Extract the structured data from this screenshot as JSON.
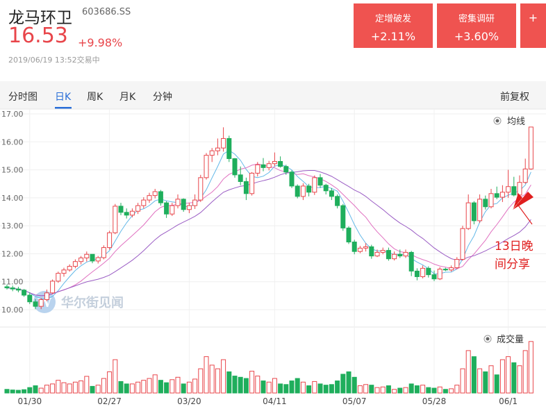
{
  "stock": {
    "name": "龙马环卫",
    "code": "603686.SS",
    "price": "16.53",
    "change": "+9.98%",
    "time": "2019/06/19 13:52交易中"
  },
  "tags": [
    {
      "label": "定增破发",
      "value": "+2.11%"
    },
    {
      "label": "密集调研",
      "value": "+3.60%"
    },
    {
      "label": "",
      "value": "+"
    }
  ],
  "tabs": [
    "分时图",
    "日K",
    "周K",
    "月K",
    "分钟"
  ],
  "active_tab": "日K",
  "adjust_label": "前复权",
  "colors": {
    "up": "#e8454a",
    "down": "#1fae5c",
    "accent": "#2a6ed8",
    "ma5": "#63b8e8",
    "ma10": "#e070c0",
    "ma20": "#9a5cc4"
  },
  "chart_data": {
    "type": "candlestick",
    "price_ticks": [
      "17.00",
      "16.00",
      "15.00",
      "14.00",
      "13.00",
      "12.00",
      "11.00",
      "10.00"
    ],
    "ylim": [
      9.6,
      17.1
    ],
    "date_ticks": [
      {
        "label": "01/30",
        "index": 4
      },
      {
        "label": "02/27",
        "index": 18
      },
      {
        "label": "03/20",
        "index": 32
      },
      {
        "label": "04/11",
        "index": 47
      },
      {
        "label": "05/07",
        "index": 61
      },
      {
        "label": "05/28",
        "index": 75
      },
      {
        "label": "06/1",
        "index": 88
      }
    ],
    "legend_price": "均线",
    "legend_volume": "成交量",
    "watermark": "华尔街见闻",
    "annotation": {
      "line1": "13日晚",
      "line2": "间分享"
    },
    "candles": [
      [
        10.82,
        10.9,
        10.72,
        10.78
      ],
      [
        10.78,
        10.86,
        10.66,
        10.74
      ],
      [
        10.74,
        10.82,
        10.62,
        10.7
      ],
      [
        10.7,
        10.74,
        10.46,
        10.52
      ],
      [
        10.52,
        10.62,
        10.2,
        10.28
      ],
      [
        10.28,
        10.38,
        10.02,
        10.12
      ],
      [
        10.12,
        10.42,
        10.02,
        10.36
      ],
      [
        10.36,
        10.72,
        10.3,
        10.6
      ],
      [
        10.6,
        11.08,
        10.56,
        11.02
      ],
      [
        11.02,
        11.36,
        10.96,
        11.3
      ],
      [
        11.3,
        11.5,
        11.18,
        11.42
      ],
      [
        11.42,
        11.62,
        11.36,
        11.55
      ],
      [
        11.55,
        11.8,
        11.48,
        11.72
      ],
      [
        11.72,
        11.92,
        11.62,
        11.85
      ],
      [
        11.85,
        12.08,
        11.72,
        11.98
      ],
      [
        11.98,
        11.98,
        11.66,
        11.74
      ],
      [
        11.74,
        11.92,
        11.65,
        11.86
      ],
      [
        11.86,
        12.3,
        11.8,
        12.22
      ],
      [
        12.22,
        12.82,
        12.15,
        12.75
      ],
      [
        12.75,
        13.78,
        12.7,
        13.7
      ],
      [
        13.7,
        13.82,
        13.38,
        13.48
      ],
      [
        13.48,
        13.62,
        13.26,
        13.38
      ],
      [
        13.38,
        13.62,
        13.3,
        13.52
      ],
      [
        13.52,
        13.82,
        13.42,
        13.72
      ],
      [
        13.72,
        14.02,
        13.62,
        13.92
      ],
      [
        13.92,
        14.18,
        13.82,
        14.08
      ],
      [
        14.08,
        14.32,
        13.98,
        14.22
      ],
      [
        14.22,
        14.28,
        13.72,
        13.82
      ],
      [
        13.82,
        13.88,
        13.28,
        13.42
      ],
      [
        13.42,
        13.82,
        13.35,
        13.72
      ],
      [
        13.72,
        14.12,
        13.62,
        13.95
      ],
      [
        13.95,
        13.98,
        13.5,
        13.58
      ],
      [
        13.58,
        13.82,
        13.45,
        13.72
      ],
      [
        13.72,
        14.12,
        13.6,
        13.92
      ],
      [
        13.92,
        14.82,
        13.85,
        14.72
      ],
      [
        14.72,
        15.6,
        14.65,
        15.52
      ],
      [
        15.52,
        15.78,
        15.28,
        15.68
      ],
      [
        15.68,
        16.12,
        15.52,
        15.78
      ],
      [
        15.78,
        16.52,
        15.65,
        16.12
      ],
      [
        16.12,
        16.22,
        15.28,
        15.4
      ],
      [
        15.4,
        15.42,
        14.72,
        14.82
      ],
      [
        14.82,
        15.12,
        14.45,
        14.58
      ],
      [
        14.58,
        14.72,
        13.92,
        14.15
      ],
      [
        14.15,
        14.92,
        14.08,
        14.88
      ],
      [
        14.88,
        15.28,
        14.76,
        15.18
      ],
      [
        15.18,
        15.42,
        14.95,
        15.08
      ],
      [
        15.08,
        15.32,
        14.98,
        15.22
      ],
      [
        15.22,
        15.62,
        15.12,
        15.3
      ],
      [
        15.3,
        15.48,
        15.08,
        15.12
      ],
      [
        15.12,
        15.18,
        14.82,
        14.92
      ],
      [
        14.92,
        14.98,
        14.35,
        14.42
      ],
      [
        14.42,
        14.48,
        13.98,
        14.05
      ],
      [
        14.05,
        14.52,
        13.92,
        14.42
      ],
      [
        14.42,
        14.5,
        14.05,
        14.2
      ],
      [
        14.2,
        14.8,
        14.1,
        14.72
      ],
      [
        14.72,
        14.85,
        14.35,
        14.45
      ],
      [
        14.45,
        14.5,
        14.12,
        14.25
      ],
      [
        14.25,
        14.35,
        13.92,
        14.05
      ],
      [
        14.05,
        14.12,
        13.62,
        13.72
      ],
      [
        13.72,
        13.78,
        12.82,
        12.92
      ],
      [
        12.92,
        12.98,
        12.35,
        12.42
      ],
      [
        12.42,
        12.5,
        11.98,
        12.08
      ],
      [
        12.08,
        12.28,
        12.02,
        12.2
      ],
      [
        12.2,
        12.38,
        12.08,
        12.25
      ],
      [
        12.25,
        12.32,
        11.82,
        11.92
      ],
      [
        11.92,
        12.15,
        11.88,
        12.05
      ],
      [
        12.05,
        12.22,
        11.98,
        12.12
      ],
      [
        12.12,
        12.22,
        11.75,
        11.82
      ],
      [
        11.82,
        12.08,
        11.76,
        11.98
      ],
      [
        11.98,
        12.15,
        11.85,
        11.92
      ],
      [
        11.92,
        12.15,
        11.85,
        12.05
      ],
      [
        12.05,
        12.1,
        11.2,
        11.38
      ],
      [
        11.38,
        11.48,
        11.05,
        11.18
      ],
      [
        11.18,
        11.58,
        11.12,
        11.48
      ],
      [
        11.48,
        11.55,
        11.15,
        11.25
      ],
      [
        11.25,
        11.4,
        11.02,
        11.1
      ],
      [
        11.1,
        11.52,
        11.06,
        11.45
      ],
      [
        11.45,
        11.5,
        11.38,
        11.42
      ],
      [
        11.42,
        11.58,
        11.36,
        11.5
      ],
      [
        11.5,
        11.88,
        11.45,
        11.8
      ],
      [
        11.8,
        13.0,
        11.75,
        12.9
      ],
      [
        12.9,
        14.12,
        12.85,
        13.82
      ],
      [
        13.82,
        13.88,
        13.05,
        13.18
      ],
      [
        13.18,
        14.12,
        13.1,
        13.95
      ],
      [
        13.95,
        14.08,
        13.58,
        13.68
      ],
      [
        13.68,
        14.32,
        13.62,
        14.15
      ],
      [
        14.15,
        14.4,
        13.95,
        14.02
      ],
      [
        14.02,
        14.45,
        13.85,
        14.2
      ],
      [
        14.2,
        15.0,
        14.0,
        14.4
      ],
      [
        14.4,
        14.75,
        14.05,
        14.1
      ],
      [
        14.1,
        14.8,
        14.05,
        14.55
      ],
      [
        14.55,
        15.4,
        14.5,
        15.03
      ],
      [
        15.03,
        16.53,
        15.0,
        16.53
      ]
    ],
    "volume_ylim": [
      0,
      220
    ],
    "volumes": [
      12,
      10,
      9,
      11,
      18,
      24,
      16,
      26,
      30,
      42,
      34,
      30,
      36,
      40,
      55,
      22,
      26,
      48,
      70,
      110,
      38,
      30,
      30,
      36,
      42,
      48,
      60,
      42,
      34,
      44,
      52,
      30,
      36,
      46,
      80,
      120,
      92,
      80,
      110,
      70,
      56,
      52,
      48,
      72,
      56,
      40,
      36,
      48,
      30,
      28,
      40,
      48,
      36,
      24,
      38,
      30,
      26,
      28,
      40,
      62,
      70,
      52,
      24,
      28,
      26,
      18,
      20,
      24,
      12,
      16,
      18,
      30,
      24,
      26,
      18,
      16,
      20,
      12,
      14,
      26,
      80,
      140,
      120,
      80,
      70,
      90,
      60,
      110,
      120,
      100,
      90,
      140,
      170
    ]
  }
}
